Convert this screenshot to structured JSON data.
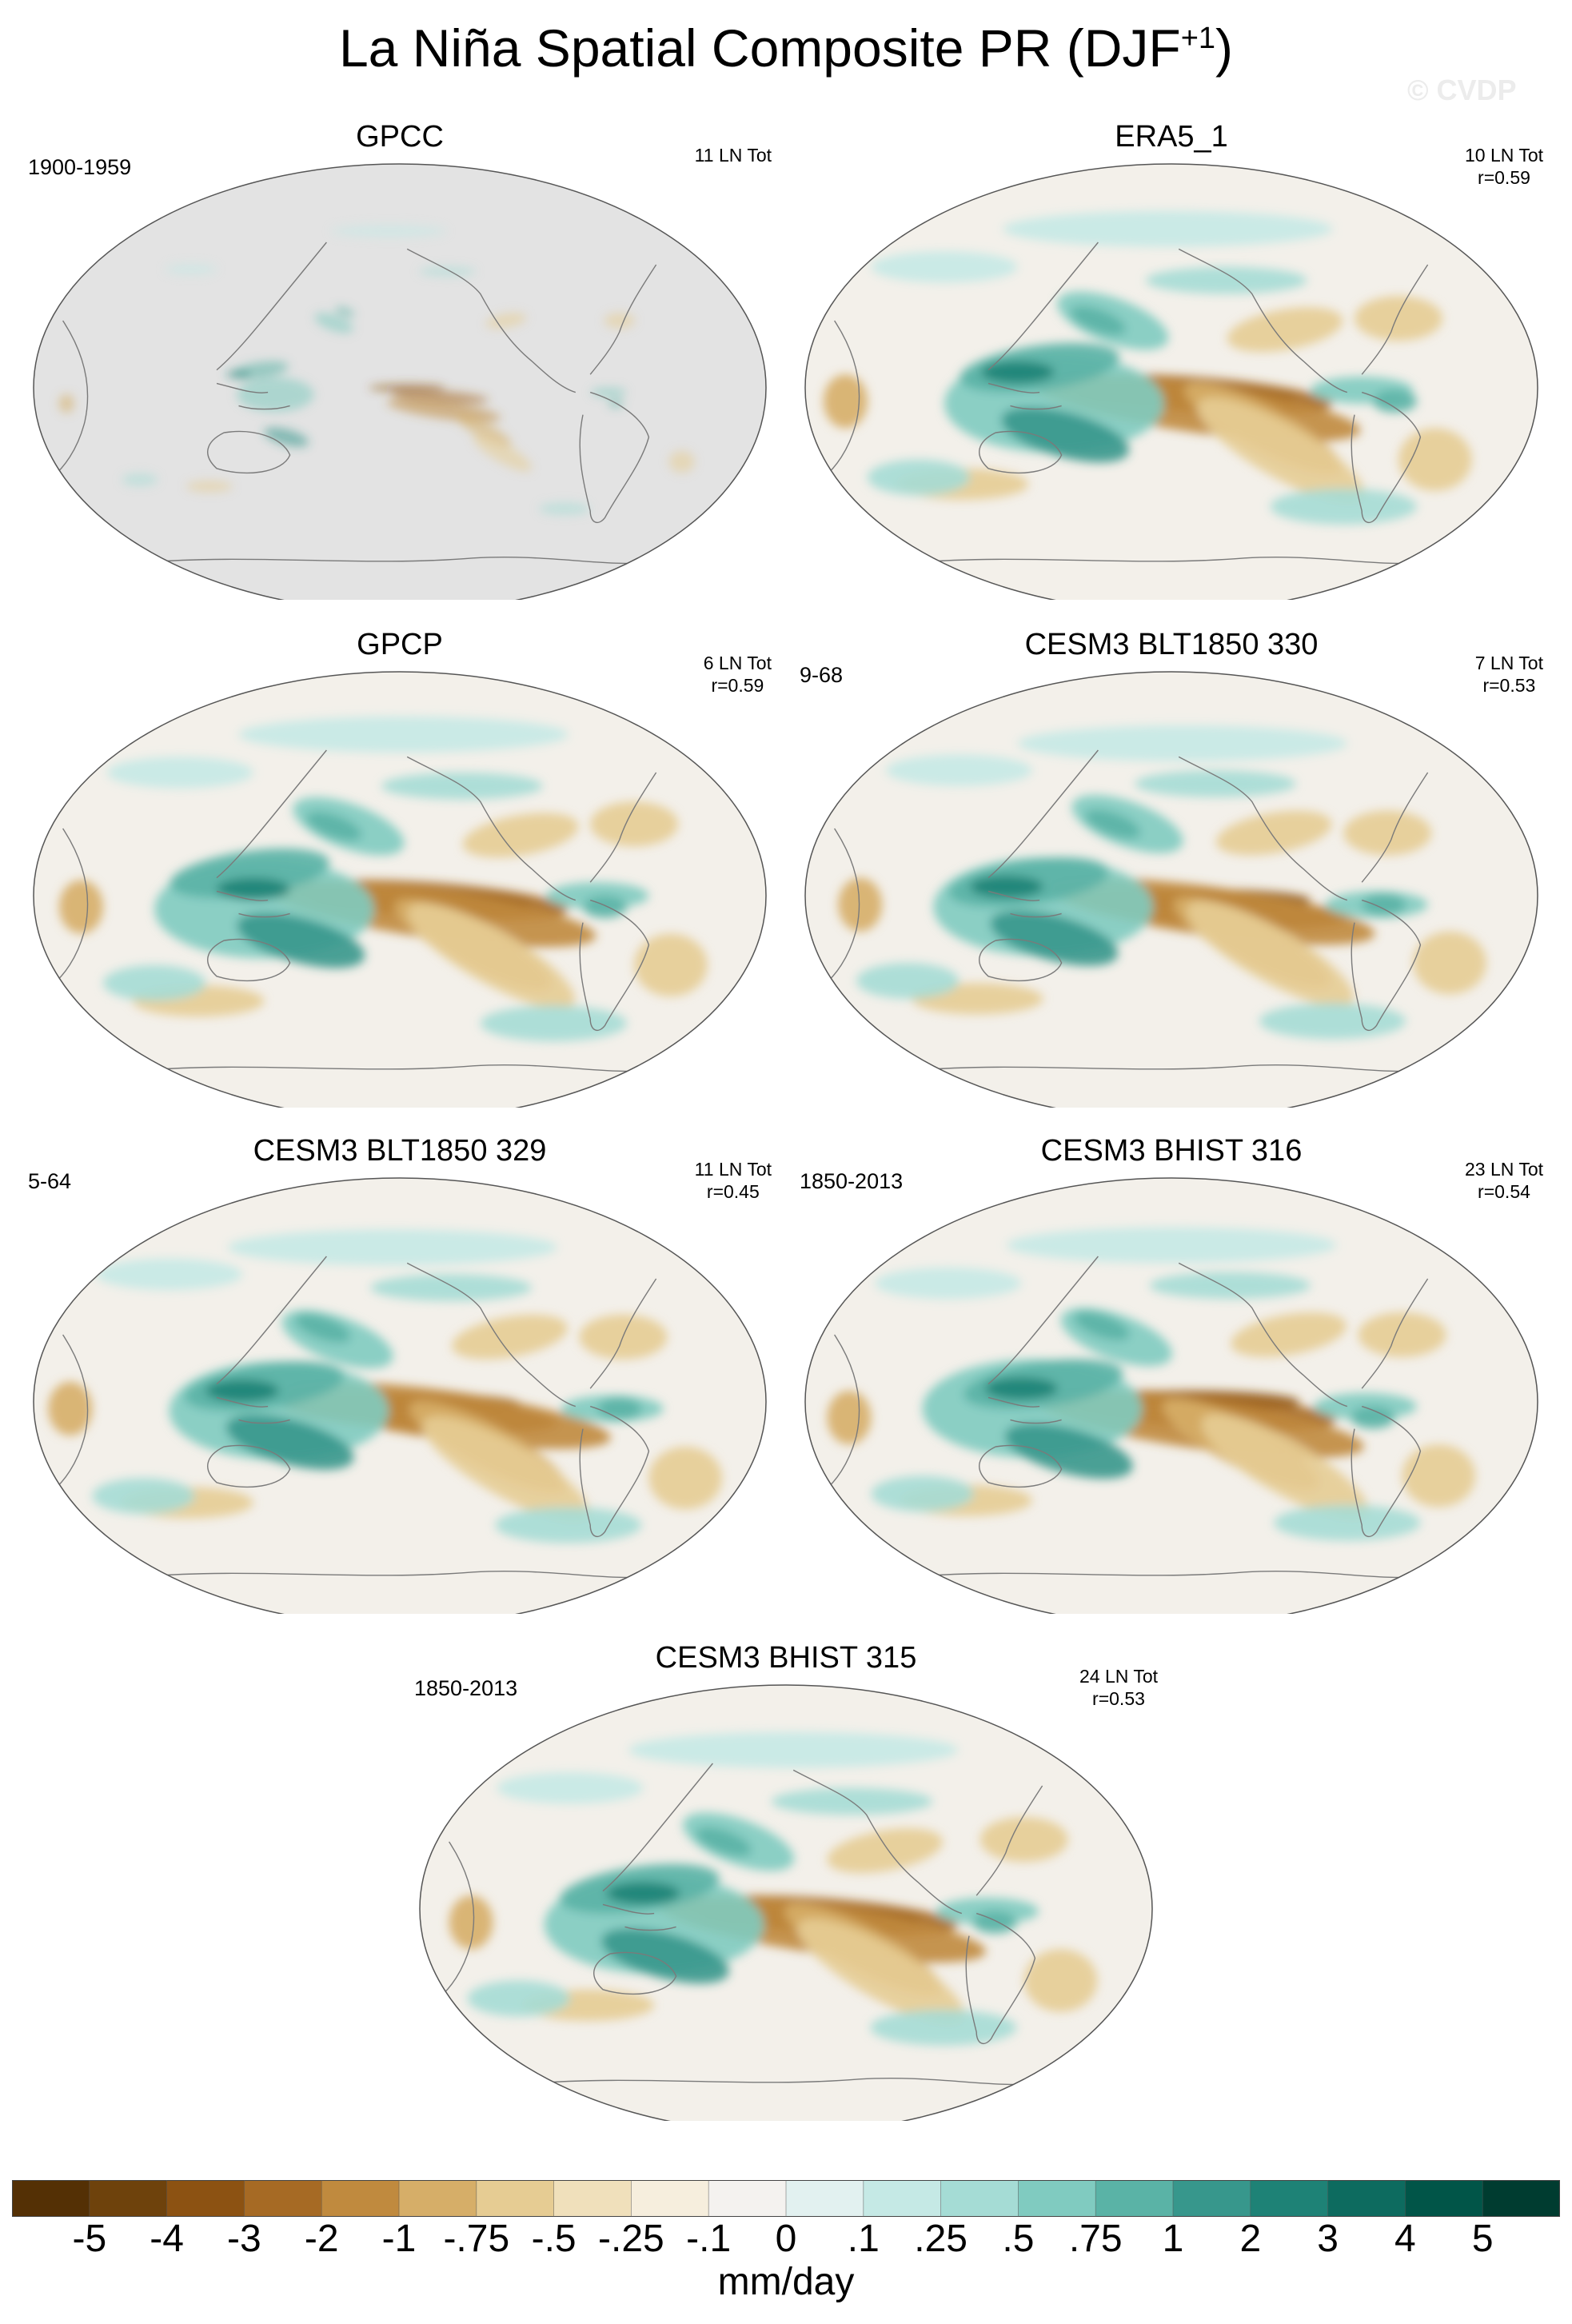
{
  "title": {
    "main": "La Niña Spatial Composite PR (DJF",
    "superscript": "+1",
    "suffix": ")"
  },
  "watermark": "© CVDP",
  "colors": {
    "land_mask": "#e3e3e3",
    "coastline": "#7a7a7a",
    "neutral": "#f3f0ea",
    "positive": "#43a598",
    "negative": "#b77b32"
  },
  "panels": [
    {
      "title": "GPCC",
      "left_label": "1900-1959",
      "right_line1": "11 LN Tot",
      "right_line2": "",
      "style": "gpcc"
    },
    {
      "title": "ERA5_1",
      "left_label": "",
      "right_line1": "10 LN Tot",
      "right_line2": "r=0.59",
      "style": "full"
    },
    {
      "title": "GPCP",
      "left_label": "",
      "right_line1": "6 LN Tot",
      "right_line2": "r=0.59",
      "style": "full"
    },
    {
      "title": "CESM3 BLT1850 330",
      "left_label": "9-68",
      "right_line1": "7 LN Tot",
      "right_line2": "r=0.53",
      "style": "full"
    },
    {
      "title": "CESM3 BLT1850 329",
      "left_label": "5-64",
      "right_line1": "11 LN Tot",
      "right_line2": "r=0.45",
      "style": "full"
    },
    {
      "title": "CESM3 BHIST 316",
      "left_label": "1850-2013",
      "right_line1": "23 LN Tot",
      "right_line2": "r=0.54",
      "style": "full"
    },
    {
      "title": "CESM3 BHIST 315",
      "left_label": "1850-2013",
      "right_line1": "24 LN Tot",
      "right_line2": "r=0.53",
      "style": "full"
    }
  ],
  "colorbar": {
    "colors": [
      "#543005",
      "#6e420c",
      "#8c5212",
      "#a66a24",
      "#c08a3e",
      "#d6ae68",
      "#e6cc93",
      "#f0e0bb",
      "#f6eedd",
      "#f4f2ef",
      "#e2f1f0",
      "#c5e9e5",
      "#a5dcd5",
      "#80cbc0",
      "#5ab3a6",
      "#37978c",
      "#1e8276",
      "#0d6b5f",
      "#015548",
      "#003c30"
    ],
    "labels": [
      "-5",
      "-4",
      "-3",
      "-2",
      "-1",
      "-.75",
      "-.5",
      "-.25",
      "-.1",
      "0",
      ".1",
      ".25",
      ".5",
      ".75",
      "1",
      "2",
      "3",
      "4",
      "5"
    ],
    "units": "mm/day"
  }
}
